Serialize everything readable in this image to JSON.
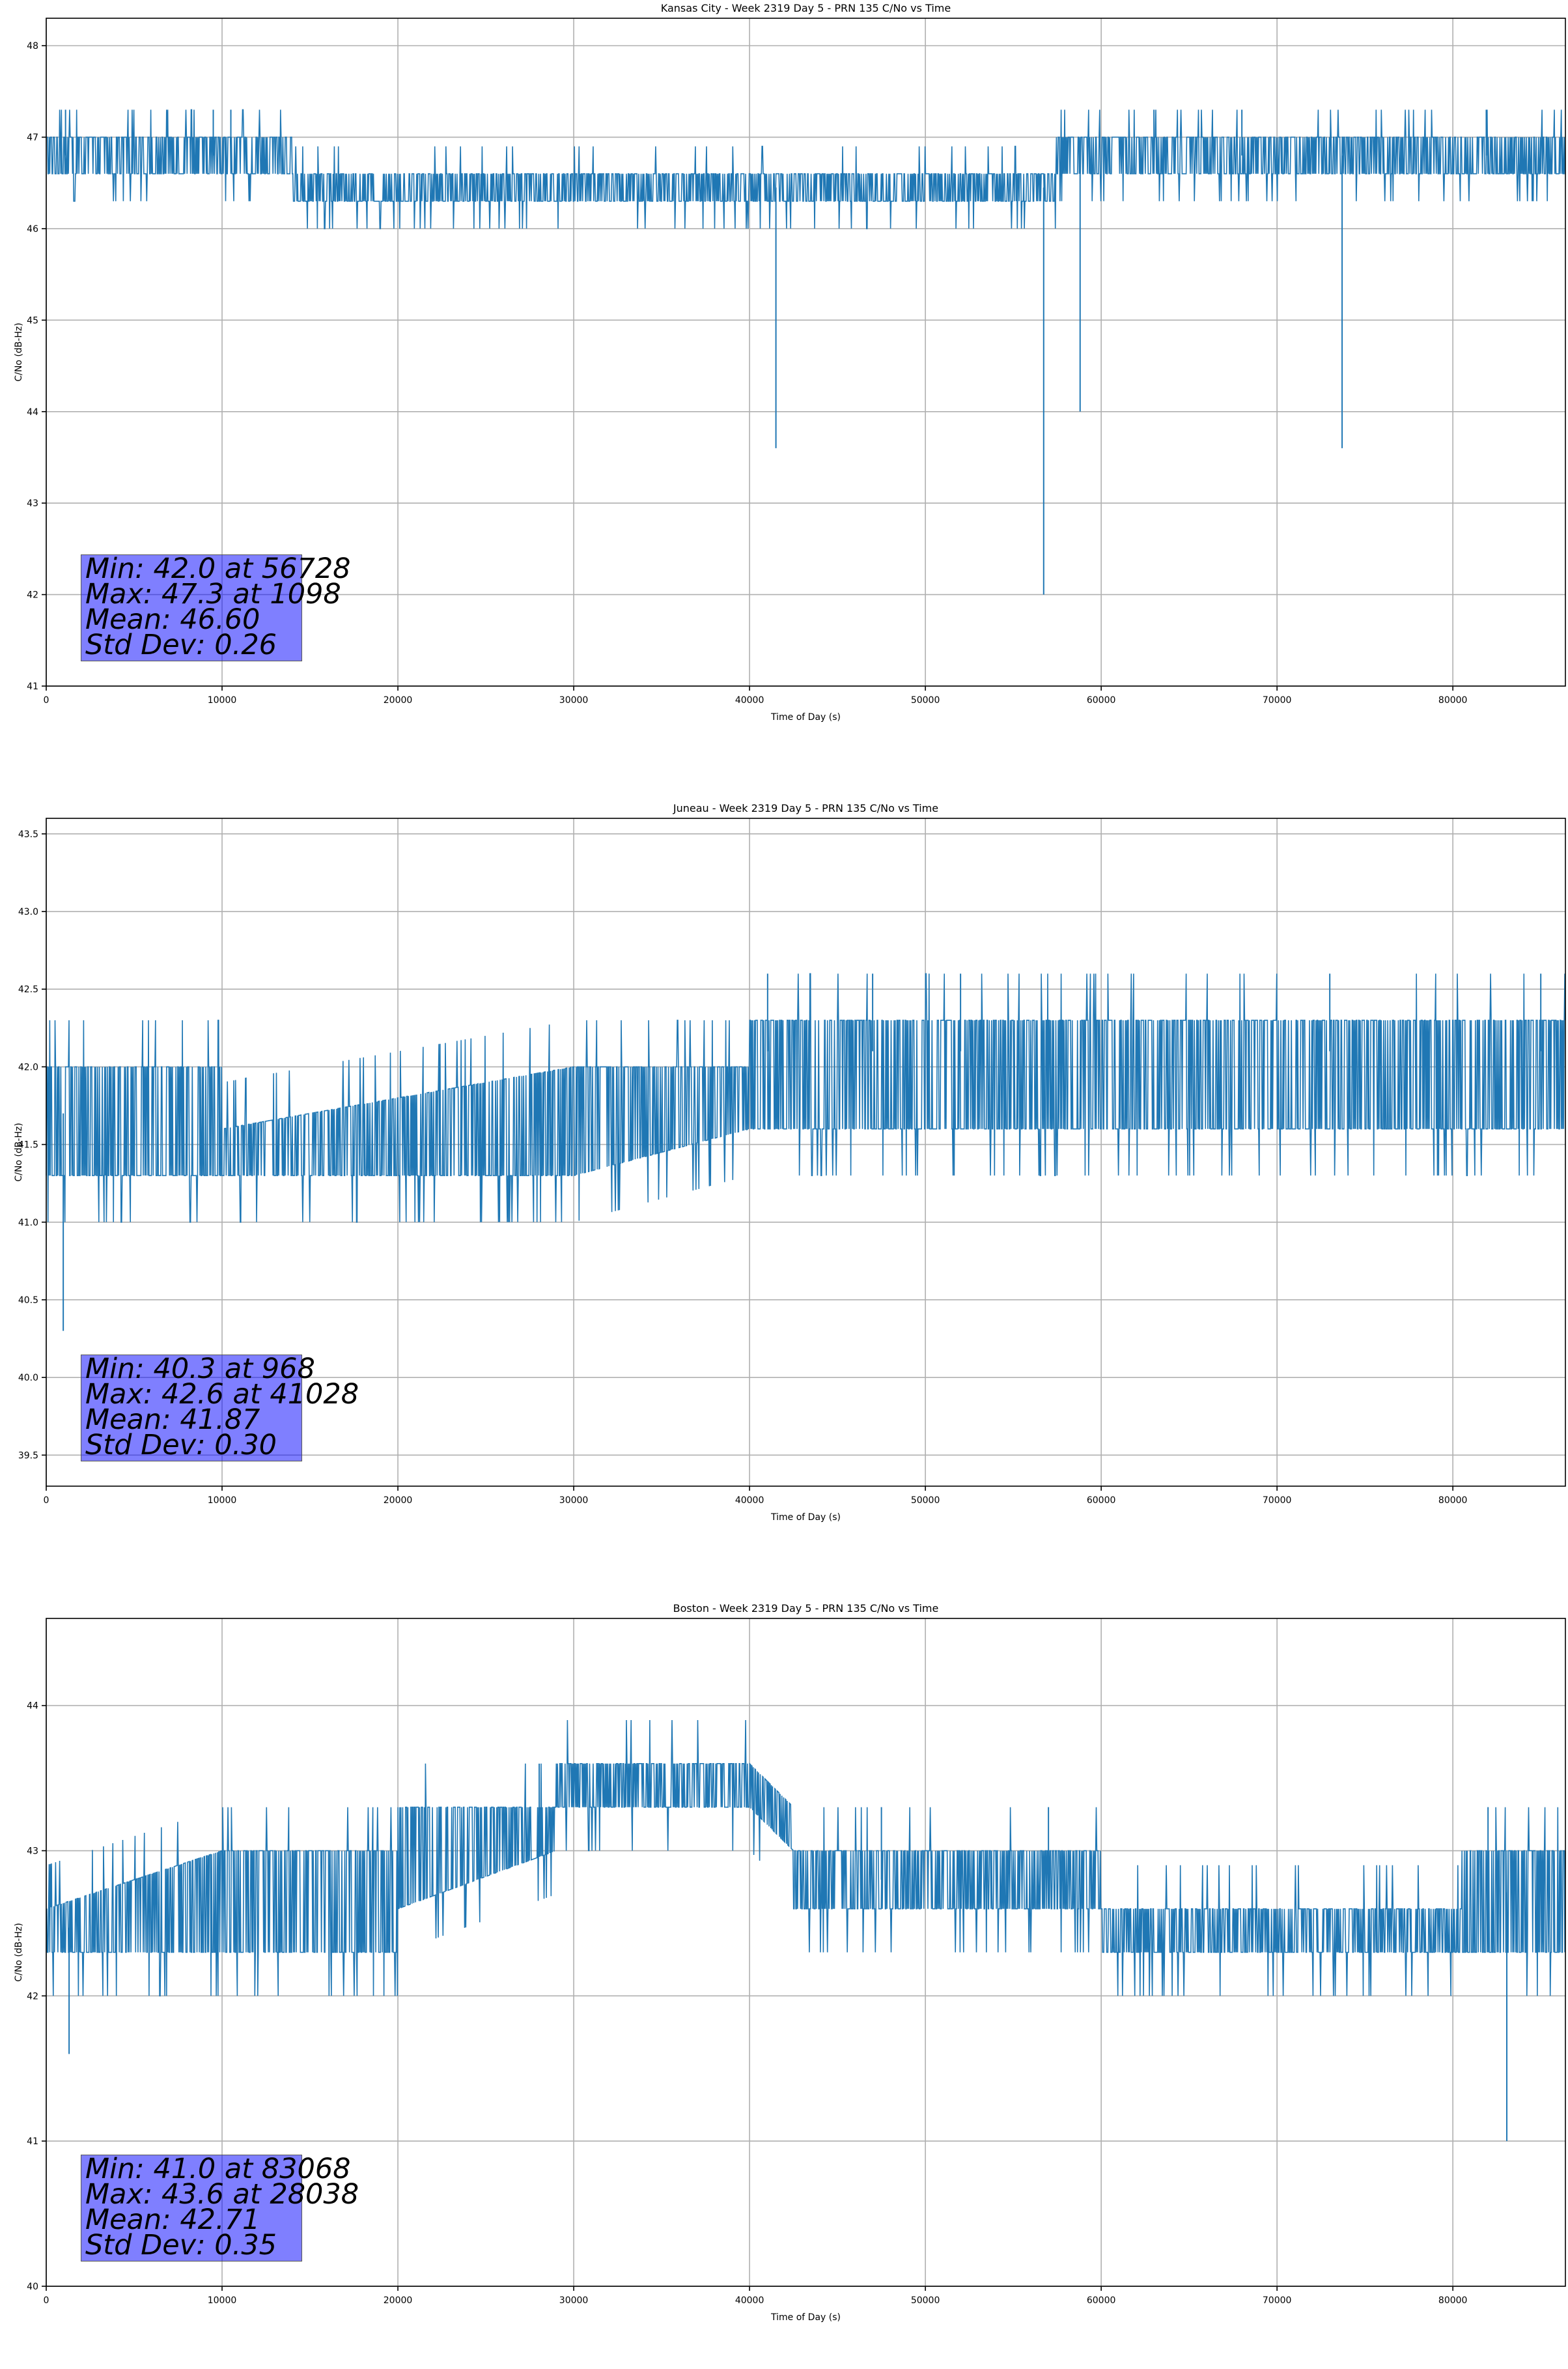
{
  "chart_data": [
    {
      "type": "line",
      "title": "Kansas City - Week 2319 Day 5 - PRN 135 C/No vs Time",
      "xlabel": "Time of Day (s)",
      "ylabel": "C/No (dB-Hz)",
      "xlim": [
        0,
        86400
      ],
      "ylim": [
        41,
        48.3
      ],
      "xticks": [
        0,
        10000,
        20000,
        30000,
        40000,
        50000,
        60000,
        70000,
        80000
      ],
      "yticks": [
        41,
        42,
        43,
        44,
        45,
        46,
        47,
        48
      ],
      "ytick_labels": [
        "41",
        "42",
        "43",
        "44",
        "45",
        "46",
        "47",
        "48"
      ],
      "grid": true,
      "line_color": "#1f77b4",
      "quantization_step": 0.3,
      "series": [
        {
          "x": [
            0,
            14000,
            14000,
            57400,
            57400,
            86400
          ],
          "y": [
            46.8,
            46.8,
            46.45,
            46.45,
            46.8,
            46.8
          ],
          "band_low": [
            46.6,
            46.6,
            46.3,
            46.3,
            46.6,
            46.6
          ],
          "band_high": [
            47.0,
            47.0,
            46.6,
            46.6,
            47.0,
            47.0
          ]
        }
      ],
      "spikes": [
        {
          "x": 1098,
          "y": 47.3
        },
        {
          "x": 9500,
          "y": 47.3
        },
        {
          "x": 10500,
          "y": 47.3
        },
        {
          "x": 41500,
          "y": 43.6
        },
        {
          "x": 56728,
          "y": 42.0
        },
        {
          "x": 58800,
          "y": 44.0
        },
        {
          "x": 73700,
          "y": 43.6
        },
        {
          "x": 63000,
          "y": 47.3
        },
        {
          "x": 68000,
          "y": 47.3
        },
        {
          "x": 81900,
          "y": 47.3
        }
      ],
      "annotation": {
        "lines": [
          "Min: 42.0 at 56728",
          "Max: 47.3 at 1098",
          "Mean: 46.60",
          "Std Dev: 0.26"
        ],
        "background": "#8080ff"
      }
    },
    {
      "type": "line",
      "title": "Juneau - Week 2319 Day 5 - PRN 135 C/No vs Time",
      "xlabel": "Time of Day (s)",
      "ylabel": "C/No (dB-Hz)",
      "xlim": [
        0,
        86400
      ],
      "ylim": [
        39.3,
        43.6
      ],
      "xticks": [
        0,
        10000,
        20000,
        30000,
        40000,
        50000,
        60000,
        70000,
        80000
      ],
      "yticks": [
        39.5,
        40.0,
        40.5,
        41.0,
        41.5,
        42.0,
        42.5,
        43.0,
        43.5
      ],
      "ytick_labels": [
        "39.5",
        "40.0",
        "40.5",
        "41.0",
        "41.5",
        "42.0",
        "42.5",
        "43.0",
        "43.5"
      ],
      "grid": true,
      "line_color": "#1f77b4",
      "quantization_step": 0.3,
      "series": [
        {
          "x": [
            0,
            10000,
            10000,
            30000,
            40000,
            40000,
            86400
          ],
          "y": [
            41.7,
            41.7,
            41.45,
            41.7,
            41.95,
            42.1,
            42.1
          ],
          "band_low": [
            41.3,
            41.3,
            41.3,
            41.3,
            41.6,
            41.6,
            41.6
          ],
          "band_high": [
            42.0,
            42.0,
            41.6,
            42.0,
            42.0,
            42.3,
            42.3
          ]
        }
      ],
      "spikes": [
        {
          "x": 968,
          "y": 40.3
        },
        {
          "x": 41028,
          "y": 42.6
        },
        {
          "x": 47000,
          "y": 42.6
        },
        {
          "x": 52000,
          "y": 42.6
        },
        {
          "x": 73000,
          "y": 42.6
        },
        {
          "x": 85000,
          "y": 42.6
        }
      ],
      "annotation": {
        "lines": [
          "Min: 40.3 at 968",
          "Max: 42.6 at 41028",
          "Mean: 41.87",
          "Std Dev: 0.30"
        ],
        "background": "#8080ff"
      }
    },
    {
      "type": "line",
      "title": "Boston - Week 2319 Day 5 - PRN 135 C/No vs Time",
      "xlabel": "Time of Day (s)",
      "ylabel": "C/No (dB-Hz)",
      "xlim": [
        0,
        86400
      ],
      "ylim": [
        40,
        44.6
      ],
      "xticks": [
        0,
        10000,
        20000,
        30000,
        40000,
        50000,
        60000,
        70000,
        80000
      ],
      "yticks": [
        40,
        41,
        42,
        43,
        44
      ],
      "ytick_labels": [
        "40",
        "41",
        "42",
        "43",
        "44"
      ],
      "grid": true,
      "line_color": "#1f77b4",
      "quantization_step": 0.3,
      "series": [
        {
          "x": [
            0,
            10000,
            20000,
            20000,
            29000,
            29000,
            40000,
            42500,
            42500,
            60000,
            60000,
            80500,
            80500,
            86400
          ],
          "y": [
            42.45,
            42.6,
            42.6,
            43.0,
            43.15,
            43.45,
            43.45,
            43.15,
            42.8,
            42.8,
            42.45,
            42.45,
            42.8,
            42.6
          ],
          "band_low": [
            42.3,
            42.3,
            42.3,
            42.6,
            43.0,
            43.3,
            43.3,
            43.0,
            42.6,
            42.6,
            42.3,
            42.3,
            42.3,
            42.3
          ],
          "band_high": [
            42.6,
            43.0,
            43.0,
            43.3,
            43.3,
            43.6,
            43.6,
            43.3,
            43.0,
            43.0,
            42.6,
            42.6,
            43.0,
            43.0
          ]
        }
      ],
      "spikes": [
        {
          "x": 1300,
          "y": 41.6
        },
        {
          "x": 28038,
          "y": 43.6
        },
        {
          "x": 83068,
          "y": 41.0
        },
        {
          "x": 47500,
          "y": 43.3
        },
        {
          "x": 57000,
          "y": 43.3
        },
        {
          "x": 82000,
          "y": 43.3
        }
      ],
      "annotation": {
        "lines": [
          "Min: 41.0 at 83068",
          "Max: 43.6 at 28038",
          "Mean: 42.71",
          "Std Dev: 0.35"
        ],
        "background": "#8080ff"
      }
    }
  ]
}
